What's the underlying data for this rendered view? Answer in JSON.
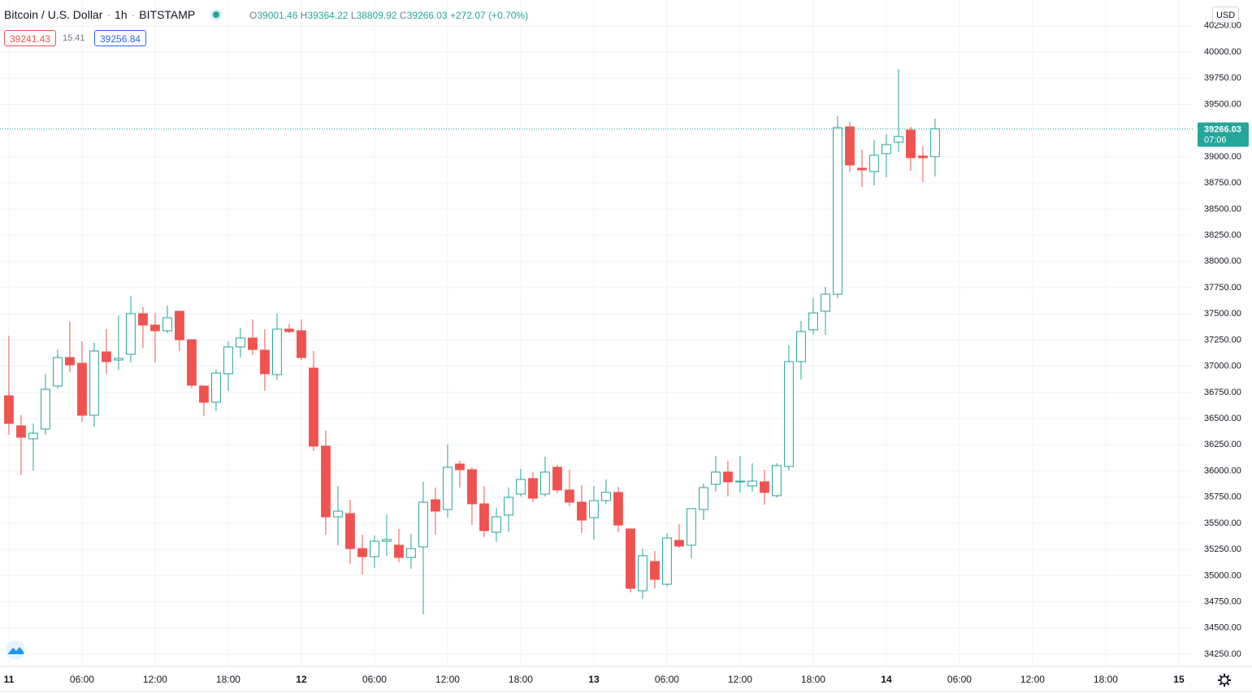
{
  "header": {
    "title": "Bitcoin / U.S. Dollar",
    "interval": "1h",
    "exchange": "BITSTAMP",
    "ohlc_letters": [
      "O",
      "H",
      "L",
      "C"
    ],
    "change": "+272.07",
    "change_pct": "(+0.70%)",
    "bid": "39241.43",
    "spread": "15.41",
    "ask": "39256.84",
    "currency": "USD",
    "countdown": "07:06"
  },
  "chart_data": {
    "type": "candlestick",
    "up_color": "#26a69a",
    "down_color": "#ef5350",
    "grid": true,
    "price_line": true,
    "x": [
      0,
      1,
      2,
      3,
      4,
      5,
      6,
      7,
      8,
      9,
      10,
      11,
      12,
      13,
      14,
      15,
      16,
      17,
      18,
      19,
      20,
      21,
      22,
      23,
      24,
      25,
      26,
      27,
      28,
      29,
      30,
      31,
      32,
      33,
      34,
      35,
      36,
      37,
      38,
      39,
      40,
      41,
      42,
      43,
      44,
      45,
      46,
      47,
      48,
      49,
      50,
      51,
      52,
      53,
      54,
      55,
      56,
      57,
      58,
      59,
      60,
      61,
      62,
      63,
      64,
      65,
      66,
      67,
      68,
      69,
      70,
      71,
      72,
      73,
      74,
      75,
      76
    ],
    "open": [
      36718,
      36431,
      36307,
      36400,
      36811,
      37083,
      37028,
      36532,
      37137,
      37059,
      37114,
      37502,
      37393,
      37339,
      37525,
      37253,
      36811,
      36656,
      36928,
      37184,
      37269,
      37153,
      36920,
      37354,
      37339,
      36982,
      36237,
      35562,
      35593,
      35259,
      35182,
      35329,
      35291,
      35174,
      35275,
      35725,
      35632,
      36066,
      36012,
      35686,
      35415,
      35578,
      35779,
      35927,
      35779,
      36035,
      35818,
      35702,
      35554,
      35717,
      35795,
      35446,
      34856,
      35135,
      34918,
      35337,
      35291,
      35632,
      35872,
      35989,
      35896,
      35857,
      35896,
      35764,
      36043,
      37044,
      37347,
      37525,
      37688,
      39286,
      38891,
      38859,
      39030,
      39139,
      39255,
      39007,
      39001.46
    ],
    "high": [
      37292,
      36532,
      36454,
      36928,
      37160,
      37424,
      37238,
      37222,
      37354,
      37486,
      37672,
      37564,
      37509,
      37579,
      37525,
      37253,
      36811,
      36966,
      37238,
      37362,
      37447,
      37354,
      37502,
      37401,
      37447,
      37145,
      36384,
      35857,
      35725,
      35391,
      35384,
      35585,
      35446,
      35399,
      35896,
      35841,
      36253,
      36097,
      36035,
      35857,
      35647,
      35841,
      36020,
      35989,
      36136,
      36059,
      36012,
      35865,
      35857,
      35919,
      35849,
      35446,
      35259,
      35236,
      35407,
      35492,
      35640,
      35880,
      36144,
      36097,
      36144,
      36074,
      36012,
      36074,
      37199,
      37432,
      37649,
      37758,
      39387,
      39333,
      39069,
      39162,
      39216,
      39837,
      39286,
      39100,
      39364.22
    ],
    "low": [
      36346,
      35958,
      36004,
      36346,
      36788,
      36943,
      36470,
      36423,
      36928,
      36966,
      37036,
      37176,
      37036,
      37316,
      37145,
      36788,
      36524,
      36571,
      36765,
      37083,
      37106,
      36765,
      36866,
      37316,
      37059,
      36191,
      35391,
      35291,
      35112,
      35011,
      35073,
      35190,
      35128,
      35066,
      34631,
      35391,
      35554,
      35841,
      35484,
      35368,
      35322,
      35415,
      35756,
      35702,
      35756,
      35787,
      35663,
      35407,
      35345,
      35686,
      35415,
      34841,
      34778,
      34879,
      34895,
      35267,
      35166,
      35531,
      35803,
      35756,
      35795,
      35803,
      35678,
      35748,
      36004,
      36873,
      37300,
      37300,
      37649,
      38852,
      38712,
      38728,
      38805,
      39046,
      38867,
      38759,
      38809.92
    ],
    "close": [
      36454,
      36322,
      36361,
      36780,
      37083,
      37013,
      36532,
      37145,
      37044,
      37075,
      37502,
      37393,
      37339,
      37463,
      37253,
      36819,
      36656,
      36935,
      37184,
      37269,
      37160,
      36928,
      37354,
      37331,
      37083,
      36237,
      35562,
      35616,
      35259,
      35182,
      35329,
      35345,
      35174,
      35259,
      35702,
      35616,
      36035,
      36012,
      35686,
      35430,
      35562,
      35748,
      35919,
      35740,
      35989,
      35818,
      35702,
      35531,
      35717,
      35795,
      35484,
      34879,
      35190,
      34965,
      35360,
      35283,
      35640,
      35841,
      35989,
      35896,
      35903,
      35903,
      35795,
      36051,
      37044,
      37331,
      37509,
      37688,
      39278,
      38922,
      38875,
      39015,
      39116,
      39193,
      38991,
      38991,
      39266.03
    ],
    "xlim": [
      -0.73,
      97.27
    ],
    "xticks": [
      {
        "value": 0,
        "label": "11"
      },
      {
        "value": 6,
        "label": "06:00"
      },
      {
        "value": 12,
        "label": "12:00"
      },
      {
        "value": 18,
        "label": "18:00"
      },
      {
        "value": 24,
        "label": "12"
      },
      {
        "value": 30,
        "label": "06:00"
      },
      {
        "value": 36,
        "label": "12:00"
      },
      {
        "value": 42,
        "label": "18:00"
      },
      {
        "value": 48,
        "label": "13"
      },
      {
        "value": 54,
        "label": "06:00"
      },
      {
        "value": 60,
        "label": "12:00"
      },
      {
        "value": 66,
        "label": "18:00"
      },
      {
        "value": 72,
        "label": "14"
      },
      {
        "value": 78,
        "label": "06:00"
      },
      {
        "value": 84,
        "label": "12:00"
      },
      {
        "value": 90,
        "label": "18:00"
      },
      {
        "value": 96,
        "label": "15"
      }
    ],
    "ylim": [
      34134,
      40497
    ],
    "yticks": [
      {
        "value": 34250,
        "label": "34250.00"
      },
      {
        "value": 34500,
        "label": "34500.00"
      },
      {
        "value": 34750,
        "label": "34750.00"
      },
      {
        "value": 35000,
        "label": "35000.00"
      },
      {
        "value": 35250,
        "label": "35250.00"
      },
      {
        "value": 35500,
        "label": "35500.00"
      },
      {
        "value": 35750,
        "label": "35750.00"
      },
      {
        "value": 36000,
        "label": "36000.00"
      },
      {
        "value": 36250,
        "label": "36250.00"
      },
      {
        "value": 36500,
        "label": "36500.00"
      },
      {
        "value": 36750,
        "label": "36750.00"
      },
      {
        "value": 37000,
        "label": "37000.00"
      },
      {
        "value": 37250,
        "label": "37250.00"
      },
      {
        "value": 37500,
        "label": "37500.00"
      },
      {
        "value": 37750,
        "label": "37750.00"
      },
      {
        "value": 38000,
        "label": "38000.00"
      },
      {
        "value": 38250,
        "label": "38250.00"
      },
      {
        "value": 38500,
        "label": "38500.00"
      },
      {
        "value": 38750,
        "label": "38750.00"
      },
      {
        "value": 39000,
        "label": "39000.00"
      },
      {
        "value": 39250,
        "label": "39250.00"
      },
      {
        "value": 39500,
        "label": "39500.00"
      },
      {
        "value": 39750,
        "label": "39750.00"
      },
      {
        "value": 40000,
        "label": "40000.00"
      },
      {
        "value": 40250,
        "label": "40250.00"
      }
    ]
  }
}
